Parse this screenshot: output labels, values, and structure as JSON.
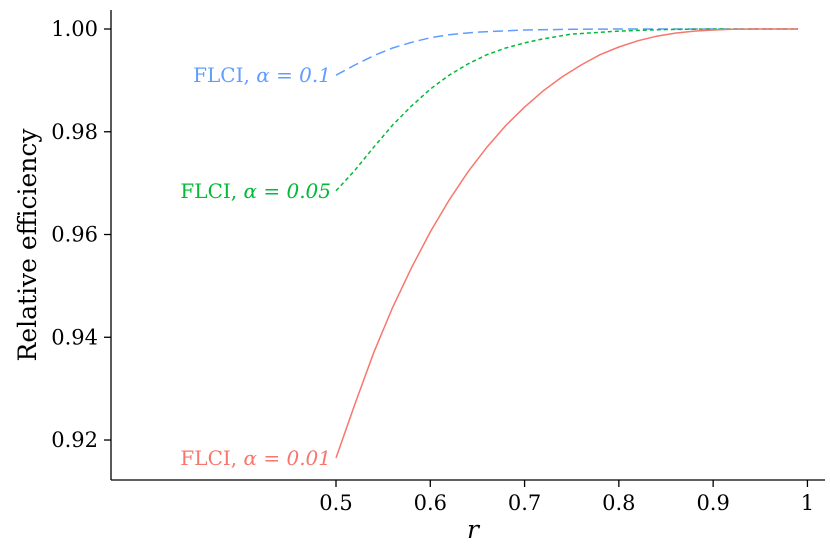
{
  "chart_data": {
    "type": "line",
    "title": "",
    "xlabel": "r",
    "ylabel": "Relative efficiency",
    "xlim": [
      0.5,
      0.99
    ],
    "ylim": [
      0.9165,
      1.0
    ],
    "x_ticks": [
      "0.5",
      "0.6",
      "0.7",
      "0.8",
      "0.9",
      "1"
    ],
    "y_ticks": [
      "0.92",
      "0.94",
      "0.96",
      "0.98",
      "1.00"
    ],
    "grid": false,
    "legend": "none (direct labels at left end of each line)",
    "series": [
      {
        "name": "FLCI, α = 0.1",
        "label_prefix": "FLCI, ",
        "label_math": "α = 0.1",
        "color": "#619CFF",
        "dash": "long-dash",
        "x": [
          0.5,
          0.52,
          0.54,
          0.56,
          0.58,
          0.6,
          0.62,
          0.65,
          0.7,
          0.75,
          0.8,
          0.85,
          0.9,
          0.95,
          0.99
        ],
        "y": [
          0.991,
          0.993,
          0.9948,
          0.9963,
          0.9974,
          0.9983,
          0.9989,
          0.9994,
          0.9998,
          0.99995,
          1.0,
          1.0,
          1.0,
          1.0,
          1.0
        ]
      },
      {
        "name": "FLCI, α = 0.05",
        "label_prefix": "FLCI, ",
        "label_math": "α = 0.05",
        "color": "#00BA38",
        "dash": "short-dash",
        "x": [
          0.5,
          0.52,
          0.54,
          0.56,
          0.58,
          0.6,
          0.62,
          0.64,
          0.66,
          0.68,
          0.7,
          0.72,
          0.75,
          0.8,
          0.85,
          0.9,
          0.95,
          0.99
        ],
        "y": [
          0.9685,
          0.9725,
          0.977,
          0.9813,
          0.985,
          0.9883,
          0.991,
          0.9932,
          0.995,
          0.9963,
          0.9973,
          0.9981,
          0.999,
          0.9996,
          0.9999,
          1.0,
          1.0,
          1.0
        ]
      },
      {
        "name": "FLCI, α = 0.01",
        "label_prefix": "FLCI, ",
        "label_math": "α = 0.01",
        "color": "#F8766D",
        "dash": "solid",
        "x": [
          0.5,
          0.52,
          0.54,
          0.56,
          0.58,
          0.6,
          0.62,
          0.64,
          0.66,
          0.68,
          0.7,
          0.72,
          0.74,
          0.76,
          0.78,
          0.8,
          0.82,
          0.84,
          0.86,
          0.88,
          0.9,
          0.92,
          0.95,
          0.99
        ],
        "y": [
          0.9165,
          0.927,
          0.937,
          0.9458,
          0.9535,
          0.9605,
          0.9667,
          0.9722,
          0.977,
          0.9812,
          0.9848,
          0.988,
          0.9907,
          0.993,
          0.995,
          0.9965,
          0.9977,
          0.9986,
          0.9992,
          0.9996,
          0.9998,
          0.99995,
          1.0,
          1.0
        ]
      }
    ]
  }
}
